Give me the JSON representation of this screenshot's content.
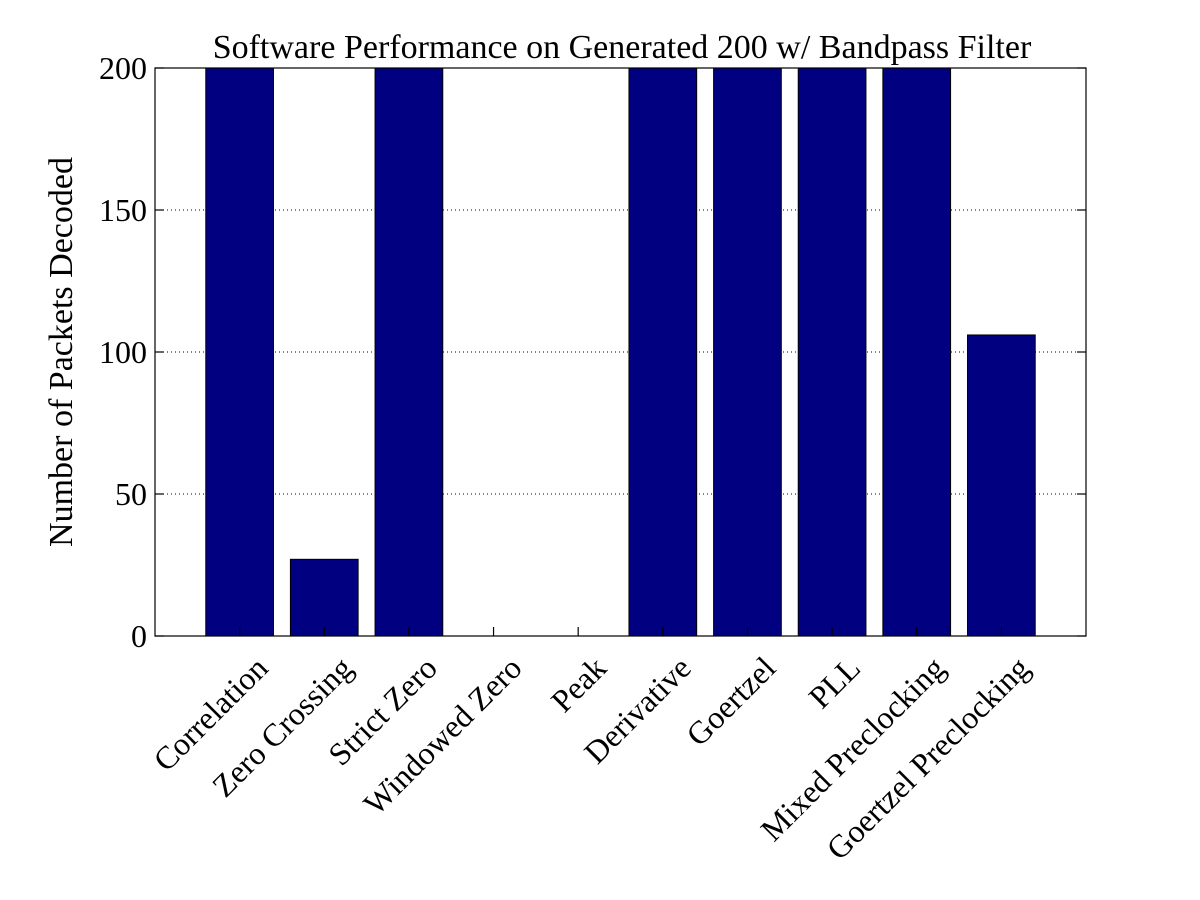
{
  "chart_data": {
    "type": "bar",
    "title": "Software Performance on Generated 200 w/ Bandpass Filter",
    "xlabel": "",
    "ylabel": "Number of Packets Decoded",
    "categories": [
      "Correlation",
      "Zero Crossing",
      "Strict Zero",
      "Windowed Zero",
      "Peak",
      "Derivative",
      "Goertzel",
      "PLL",
      "Mixed Preclocking",
      "Goertzel Preclocking"
    ],
    "values": [
      200,
      27,
      200,
      0,
      0,
      200,
      200,
      200,
      200,
      106
    ],
    "ylim": [
      0,
      200
    ],
    "yticks": [
      0,
      50,
      100,
      150,
      200
    ],
    "x_slots": 11,
    "grid": true,
    "bar_color": "#000080",
    "legend": "none"
  }
}
